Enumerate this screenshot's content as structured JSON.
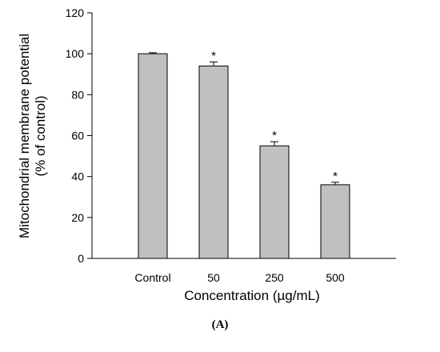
{
  "chart_data": {
    "type": "bar",
    "categories": [
      "Control",
      "50",
      "250",
      "500"
    ],
    "values": [
      100,
      94,
      55,
      36
    ],
    "errors": [
      0.5,
      2,
      2,
      1.2
    ],
    "significance": [
      "",
      "*",
      "*",
      "*"
    ],
    "xlabel": "Concentration (µg/mL)",
    "ylabel_lines": [
      "Mitochondrial membrane potential",
      "(% of control)"
    ],
    "ylim": [
      0,
      120
    ],
    "yticks": [
      0,
      20,
      40,
      60,
      80,
      100,
      120
    ],
    "grid": false,
    "legend": "none",
    "bar_color": "#c0c0c0",
    "bar_edge_color": "#000000"
  },
  "panel_label": "(A)"
}
